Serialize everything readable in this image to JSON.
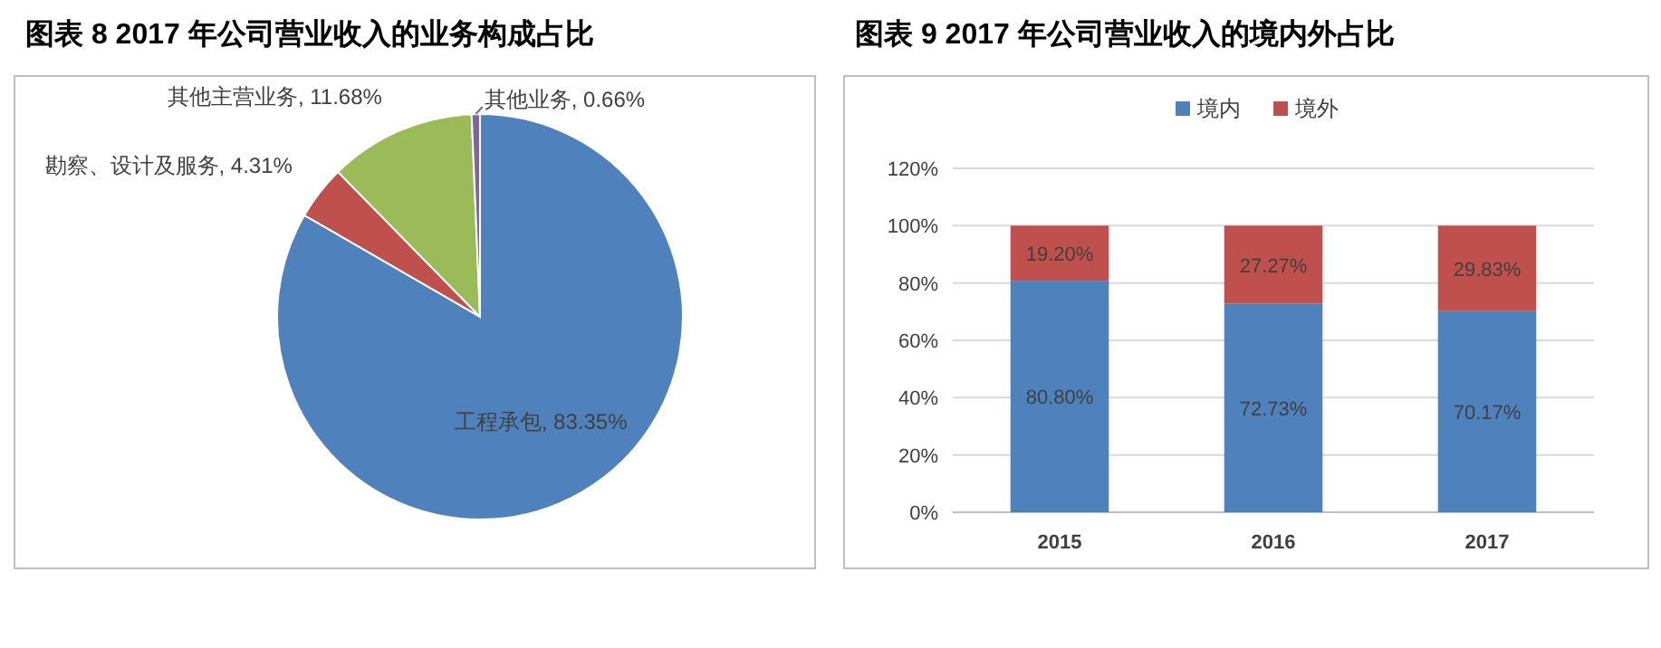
{
  "chart_data": [
    {
      "type": "pie",
      "title": "图表 8 2017 年公司营业收入的业务构成占比",
      "categories": [
        "工程承包",
        "勘察、设计及服务",
        "其他主营业务",
        "其他业务"
      ],
      "values": [
        83.35,
        4.31,
        11.68,
        0.66
      ],
      "colors": [
        "#4f81bd",
        "#c0504d",
        "#9bbb59",
        "#8064a2"
      ],
      "value_labels": [
        "83.35%",
        "4.31%",
        "11.68%",
        "0.66%"
      ]
    },
    {
      "type": "bar",
      "title": "图表 9 2017 年公司营业收入的境内外占比",
      "categories": [
        "2015",
        "2016",
        "2017"
      ],
      "stacked": true,
      "ylim": [
        0,
        120
      ],
      "yticks": [
        {
          "value": 0,
          "label": "0%"
        },
        {
          "value": 20,
          "label": "20%"
        },
        {
          "value": 40,
          "label": "40%"
        },
        {
          "value": 60,
          "label": "60%"
        },
        {
          "value": 80,
          "label": "80%"
        },
        {
          "value": 100,
          "label": "100%"
        },
        {
          "value": 120,
          "label": "120%"
        }
      ],
      "grid": "y",
      "legend": "top",
      "series": [
        {
          "name": "境内",
          "color": "#4f81bd",
          "values": [
            80.8,
            72.73,
            70.17
          ],
          "value_labels": [
            "80.80%",
            "72.73%",
            "70.17%"
          ]
        },
        {
          "name": "境外",
          "color": "#c0504d",
          "values": [
            19.2,
            27.27,
            29.83
          ],
          "value_labels": [
            "19.20%",
            "27.27%",
            "29.83%"
          ]
        }
      ]
    }
  ]
}
